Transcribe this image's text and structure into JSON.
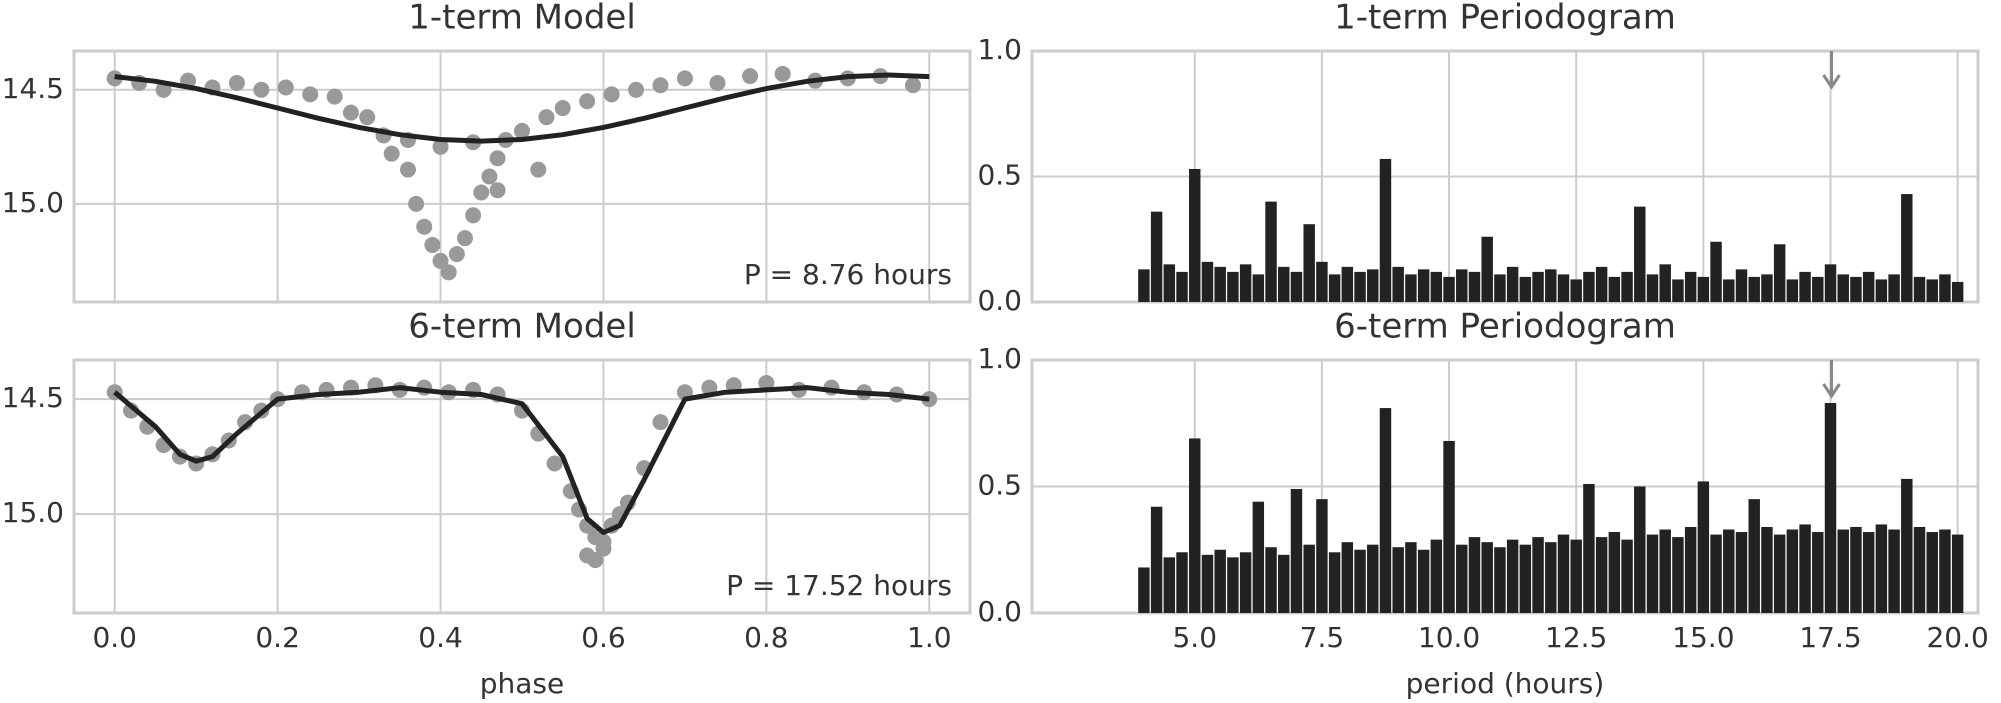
{
  "chart_data": [
    {
      "type": "scatter",
      "title": "1-term Model",
      "annotation": "P = 8.76 hours",
      "show_xtick_labels": false,
      "grid": true,
      "xlim": [
        -0.05,
        1.05
      ],
      "ylim": [
        15.43,
        14.33
      ],
      "xticks": [
        {
          "value": 0.0,
          "label": "0.0"
        },
        0.2,
        0.4,
        0.6,
        0.8,
        {
          "value": 1.0,
          "label": "1.0"
        }
      ],
      "yticks": [
        14.5,
        {
          "value": 15.0,
          "label": "15.0"
        }
      ],
      "series": [
        {
          "kind": "scatter",
          "color": "#999999",
          "x": [
            0.0,
            0.03,
            0.06,
            0.09,
            0.12,
            0.15,
            0.18,
            0.21,
            0.24,
            0.27,
            0.29,
            0.31,
            0.33,
            0.34,
            0.36,
            0.37,
            0.38,
            0.39,
            0.4,
            0.41,
            0.42,
            0.43,
            0.44,
            0.45,
            0.46,
            0.47,
            0.48,
            0.5,
            0.53,
            0.55,
            0.58,
            0.61,
            0.64,
            0.67,
            0.7,
            0.74,
            0.78,
            0.82,
            0.86,
            0.9,
            0.94,
            0.98,
            0.36,
            0.4,
            0.44,
            0.47,
            0.52
          ],
          "values": [
            14.45,
            14.47,
            14.5,
            14.46,
            14.49,
            14.47,
            14.5,
            14.49,
            14.52,
            14.53,
            14.6,
            14.62,
            14.7,
            14.78,
            14.85,
            15.0,
            15.1,
            15.18,
            15.25,
            15.3,
            15.22,
            15.15,
            15.05,
            14.95,
            14.88,
            14.8,
            14.72,
            14.68,
            14.62,
            14.58,
            14.55,
            14.52,
            14.5,
            14.48,
            14.45,
            14.47,
            14.44,
            14.43,
            14.46,
            14.45,
            14.44,
            14.48,
            14.72,
            14.75,
            14.73,
            14.94,
            14.85
          ]
        },
        {
          "kind": "line",
          "color": "#222222",
          "x": [
            0,
            0.05,
            0.1,
            0.15,
            0.2,
            0.25,
            0.3,
            0.35,
            0.4,
            0.45,
            0.5,
            0.55,
            0.6,
            0.65,
            0.7,
            0.75,
            0.8,
            0.85,
            0.9,
            0.95,
            1.0
          ],
          "values": [
            14.442,
            14.463,
            14.495,
            14.535,
            14.58,
            14.625,
            14.665,
            14.697,
            14.718,
            14.725,
            14.718,
            14.697,
            14.665,
            14.625,
            14.58,
            14.535,
            14.495,
            14.463,
            14.442,
            14.435,
            14.442
          ]
        }
      ]
    },
    {
      "type": "scatter",
      "title": "6-term Model",
      "annotation": "P = 17.52 hours",
      "xlabel": "phase",
      "show_xtick_labels": true,
      "grid": true,
      "xlim": [
        -0.05,
        1.05
      ],
      "ylim": [
        15.43,
        14.33
      ],
      "xticks": [
        {
          "value": 0.0,
          "label": "0.0"
        },
        0.2,
        0.4,
        0.6,
        0.8,
        {
          "value": 1.0,
          "label": "1.0"
        }
      ],
      "yticks": [
        14.5,
        {
          "value": 15.0,
          "label": "15.0"
        }
      ],
      "series": [
        {
          "kind": "scatter",
          "color": "#999999",
          "x": [
            0.0,
            0.02,
            0.04,
            0.06,
            0.08,
            0.1,
            0.12,
            0.14,
            0.16,
            0.18,
            0.2,
            0.23,
            0.26,
            0.29,
            0.32,
            0.35,
            0.38,
            0.41,
            0.44,
            0.47,
            0.5,
            0.52,
            0.54,
            0.56,
            0.57,
            0.58,
            0.59,
            0.6,
            0.61,
            0.62,
            0.63,
            0.65,
            0.67,
            0.7,
            0.73,
            0.76,
            0.8,
            0.84,
            0.88,
            0.92,
            0.96,
            1.0,
            0.59,
            0.6,
            0.58
          ],
          "values": [
            14.47,
            14.55,
            14.62,
            14.7,
            14.75,
            14.78,
            14.74,
            14.68,
            14.6,
            14.55,
            14.5,
            14.47,
            14.46,
            14.45,
            14.44,
            14.46,
            14.45,
            14.47,
            14.46,
            14.48,
            14.55,
            14.65,
            14.78,
            14.9,
            14.98,
            15.05,
            15.1,
            15.12,
            15.05,
            15.0,
            14.95,
            14.8,
            14.6,
            14.47,
            14.45,
            14.44,
            14.43,
            14.46,
            14.45,
            14.47,
            14.48,
            14.5,
            15.2,
            15.15,
            15.18
          ]
        },
        {
          "kind": "line",
          "color": "#222222",
          "x": [
            0,
            0.05,
            0.08,
            0.1,
            0.12,
            0.15,
            0.2,
            0.25,
            0.3,
            0.35,
            0.4,
            0.45,
            0.5,
            0.55,
            0.58,
            0.6,
            0.62,
            0.65,
            0.7,
            0.75,
            0.8,
            0.85,
            0.9,
            0.95,
            1.0
          ],
          "values": [
            14.47,
            14.62,
            14.74,
            14.77,
            14.75,
            14.65,
            14.5,
            14.48,
            14.47,
            14.45,
            14.47,
            14.48,
            14.52,
            14.75,
            15.02,
            15.08,
            15.05,
            14.85,
            14.5,
            14.47,
            14.46,
            14.45,
            14.47,
            14.48,
            14.5
          ]
        }
      ]
    },
    {
      "type": "bar",
      "title": "1-term Periodogram",
      "show_xtick_labels": false,
      "grid": true,
      "color": "#222222",
      "arrow_x": 17.52,
      "xlim": [
        1.8,
        20.4
      ],
      "ylim": [
        0,
        1
      ],
      "xticks": [
        {
          "value": 5.0,
          "label": "5.0"
        },
        7.5,
        {
          "value": 10.0,
          "label": "10.0"
        },
        12.5,
        {
          "value": 15.0,
          "label": "15.0"
        },
        17.5,
        {
          "value": 20.0,
          "label": "20.0"
        }
      ],
      "yticks": [
        {
          "value": 0.0,
          "label": "0.0"
        },
        0.5,
        {
          "value": 1.0,
          "label": "1.0"
        }
      ],
      "x": [
        4,
        4.25,
        4.5,
        4.75,
        5,
        5.25,
        5.5,
        5.75,
        6,
        6.25,
        6.5,
        6.75,
        7,
        7.25,
        7.5,
        7.75,
        8,
        8.25,
        8.5,
        8.75,
        9,
        9.25,
        9.5,
        9.75,
        10,
        10.25,
        10.5,
        10.75,
        11,
        11.25,
        11.5,
        11.75,
        12,
        12.25,
        12.5,
        12.75,
        13,
        13.25,
        13.5,
        13.75,
        14,
        14.25,
        14.5,
        14.75,
        15,
        15.25,
        15.5,
        15.75,
        16,
        16.25,
        16.5,
        16.75,
        17,
        17.25,
        17.5,
        17.75,
        18,
        18.25,
        18.5,
        18.75,
        19,
        19.25,
        19.5,
        19.75,
        20
      ],
      "values": [
        0.13,
        0.36,
        0.15,
        0.12,
        0.53,
        0.16,
        0.14,
        0.12,
        0.15,
        0.11,
        0.4,
        0.14,
        0.12,
        0.31,
        0.16,
        0.11,
        0.14,
        0.12,
        0.13,
        0.57,
        0.14,
        0.11,
        0.13,
        0.12,
        0.1,
        0.13,
        0.12,
        0.26,
        0.11,
        0.14,
        0.1,
        0.12,
        0.13,
        0.11,
        0.09,
        0.12,
        0.14,
        0.1,
        0.12,
        0.38,
        0.11,
        0.15,
        0.09,
        0.12,
        0.1,
        0.24,
        0.09,
        0.13,
        0.1,
        0.11,
        0.23,
        0.09,
        0.12,
        0.1,
        0.15,
        0.11,
        0.1,
        0.12,
        0.09,
        0.11,
        0.43,
        0.1,
        0.09,
        0.11,
        0.08
      ]
    },
    {
      "type": "bar",
      "title": "6-term Periodogram",
      "xlabel": "period (hours)",
      "show_xtick_labels": true,
      "grid": true,
      "color": "#222222",
      "arrow_x": 17.52,
      "xlim": [
        1.8,
        20.4
      ],
      "ylim": [
        0,
        1
      ],
      "xticks": [
        {
          "value": 5.0,
          "label": "5.0"
        },
        7.5,
        {
          "value": 10.0,
          "label": "10.0"
        },
        12.5,
        {
          "value": 15.0,
          "label": "15.0"
        },
        17.5,
        {
          "value": 20.0,
          "label": "20.0"
        }
      ],
      "yticks": [
        {
          "value": 0.0,
          "label": "0.0"
        },
        0.5,
        {
          "value": 1.0,
          "label": "1.0"
        }
      ],
      "x": [
        4,
        4.25,
        4.5,
        4.75,
        5,
        5.25,
        5.5,
        5.75,
        6,
        6.25,
        6.5,
        6.75,
        7,
        7.25,
        7.5,
        7.75,
        8,
        8.25,
        8.5,
        8.75,
        9,
        9.25,
        9.5,
        9.75,
        10,
        10.25,
        10.5,
        10.75,
        11,
        11.25,
        11.5,
        11.75,
        12,
        12.25,
        12.5,
        12.75,
        13,
        13.25,
        13.5,
        13.75,
        14,
        14.25,
        14.5,
        14.75,
        15,
        15.25,
        15.5,
        15.75,
        16,
        16.25,
        16.5,
        16.75,
        17,
        17.25,
        17.5,
        17.75,
        18,
        18.25,
        18.5,
        18.75,
        19,
        19.25,
        19.5,
        19.75,
        20
      ],
      "values": [
        0.18,
        0.42,
        0.22,
        0.24,
        0.69,
        0.23,
        0.25,
        0.22,
        0.24,
        0.44,
        0.26,
        0.23,
        0.49,
        0.27,
        0.45,
        0.24,
        0.28,
        0.25,
        0.27,
        0.81,
        0.26,
        0.28,
        0.25,
        0.29,
        0.68,
        0.27,
        0.3,
        0.28,
        0.26,
        0.29,
        0.27,
        0.3,
        0.28,
        0.31,
        0.29,
        0.51,
        0.3,
        0.32,
        0.29,
        0.5,
        0.31,
        0.33,
        0.3,
        0.34,
        0.52,
        0.31,
        0.33,
        0.32,
        0.45,
        0.34,
        0.31,
        0.33,
        0.35,
        0.32,
        0.83,
        0.33,
        0.34,
        0.32,
        0.35,
        0.33,
        0.53,
        0.34,
        0.32,
        0.33,
        0.31
      ]
    }
  ]
}
